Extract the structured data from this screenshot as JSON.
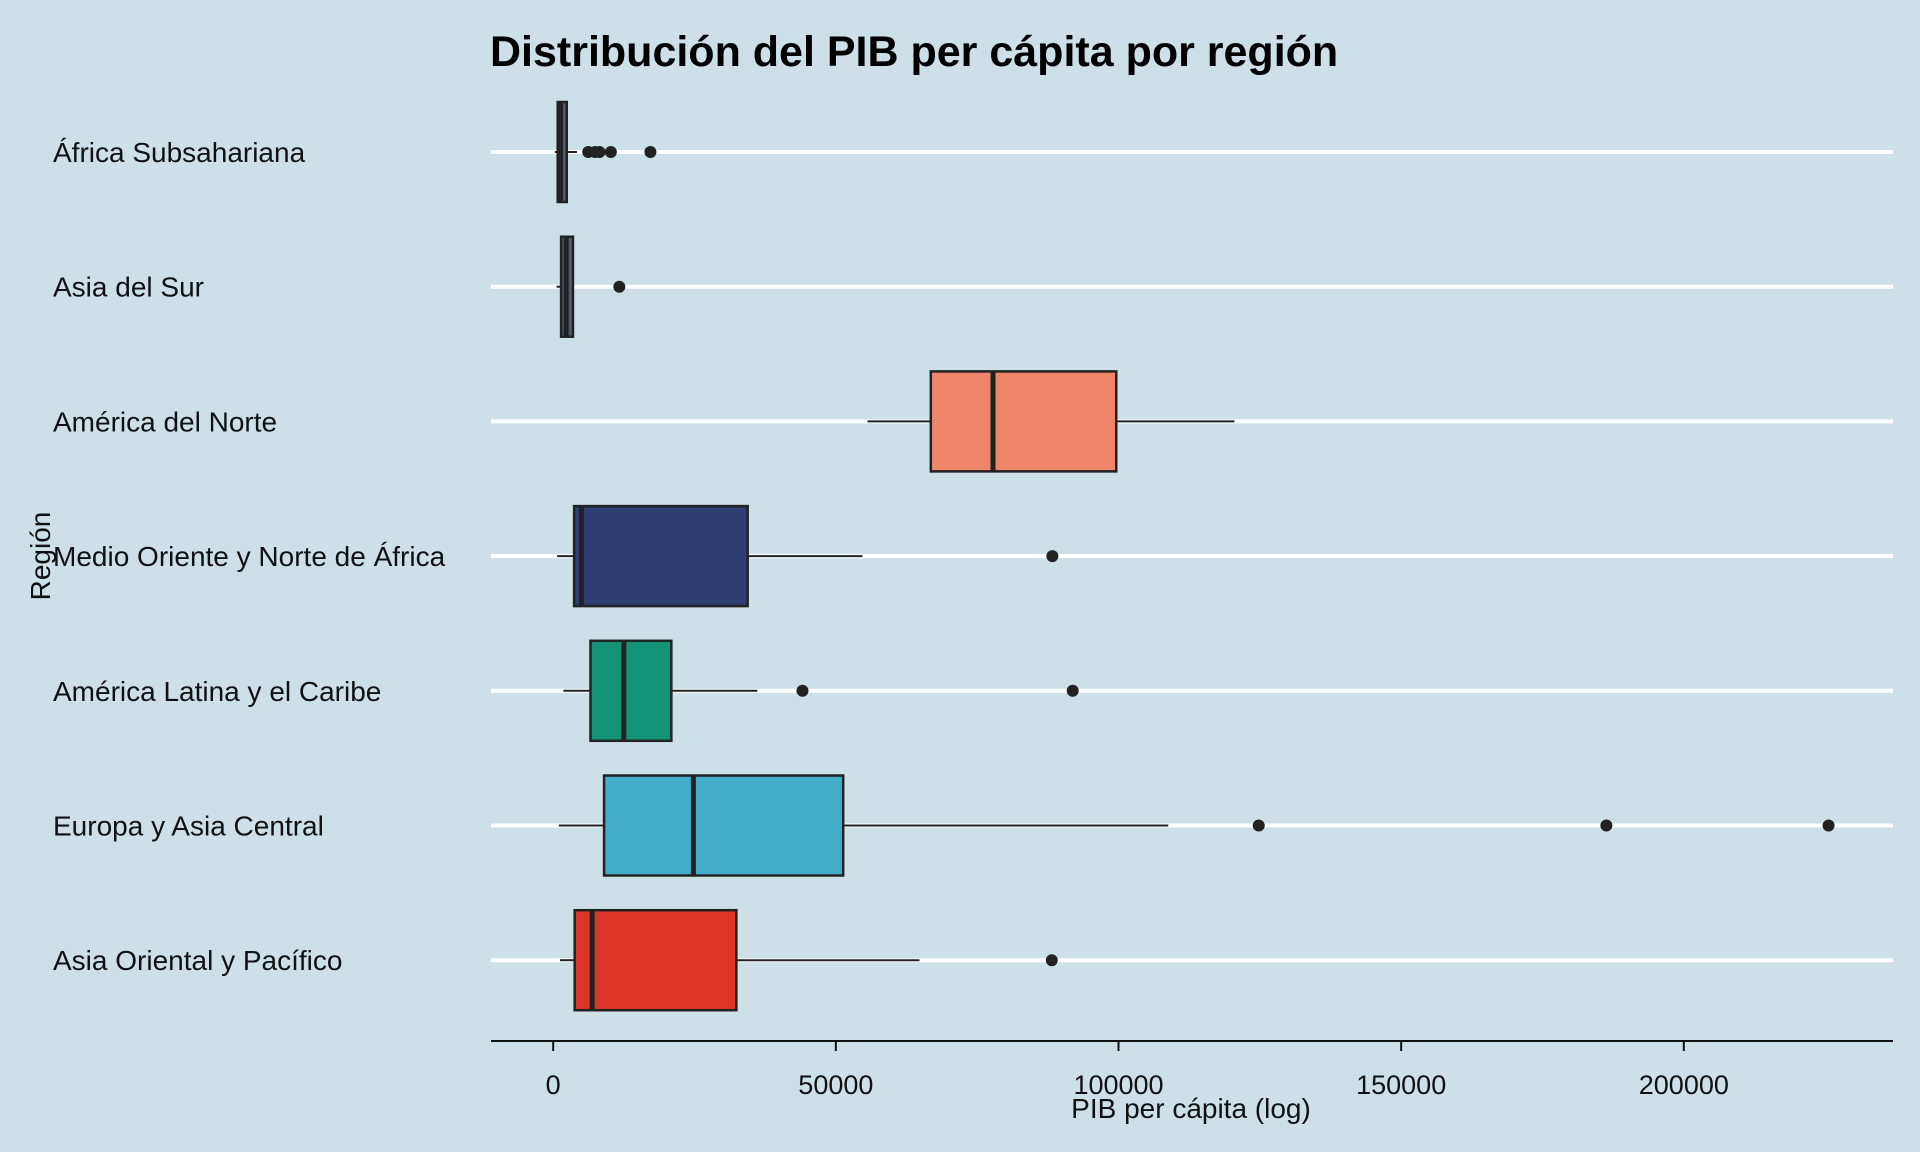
{
  "chart_data": {
    "type": "boxplot",
    "title": "Distribución del PIB per cápita por región",
    "xlabel": "PIB per cápita (log)",
    "ylabel": "Región",
    "xlim": [
      -11000,
      237000
    ],
    "xticks": [
      0,
      50000,
      100000,
      150000,
      200000
    ],
    "xtick_labels": [
      "0",
      "50000",
      "100000",
      "150000",
      "200000"
    ],
    "grid": "horizontal",
    "legend": "none",
    "box_edge_color": "#222222",
    "grid_color": "#ffffff",
    "categories": [
      "África Subsahariana",
      "Asia del Sur",
      "América del Norte",
      "Medio Oriente y Norte de África",
      "América Latina y el Caribe",
      "Europa y Asia Central",
      "Asia Oriental y Pacífico"
    ],
    "boxes": [
      {
        "category": "África Subsahariana",
        "color": "#4f5b73",
        "whisker_low": 300,
        "q1": 800,
        "median": 1300,
        "q3": 2400,
        "whisker_high": 4200,
        "outliers": [
          6200,
          7400,
          8200,
          10200,
          17200
        ]
      },
      {
        "category": "Asia del Sur",
        "color": "#4f5b73",
        "whisker_low": 600,
        "q1": 1400,
        "median": 2300,
        "q3": 3500,
        "whisker_high": 3500,
        "outliers": [
          11700
        ]
      },
      {
        "category": "América del Norte",
        "color": "#ef866c",
        "whisker_low": 55600,
        "q1": 66800,
        "median": 77800,
        "q3": 99600,
        "whisker_high": 120500,
        "outliers": []
      },
      {
        "category": "Medio Oriente y Norte de África",
        "color": "#2e3d72",
        "whisker_low": 700,
        "q1": 3700,
        "median": 5000,
        "q3": 34400,
        "whisker_high": 54700,
        "outliers": [
          88300
        ]
      },
      {
        "category": "América Latina y el Caribe",
        "color": "#139276",
        "whisker_low": 1800,
        "q1": 6600,
        "median": 12500,
        "q3": 20900,
        "whisker_high": 36100,
        "outliers": [
          44100,
          91900
        ]
      },
      {
        "category": "Europa y Asia Central",
        "color": "#44adc9",
        "whisker_low": 1000,
        "q1": 9000,
        "median": 24800,
        "q3": 51300,
        "whisker_high": 108800,
        "outliers": [
          124800,
          186300,
          225600
        ]
      },
      {
        "category": "Asia Oriental y Pacífico",
        "color": "#dd3428",
        "whisker_low": 1200,
        "q1": 3800,
        "median": 6900,
        "q3": 32400,
        "whisker_high": 64800,
        "outliers": [
          88200
        ]
      }
    ]
  }
}
